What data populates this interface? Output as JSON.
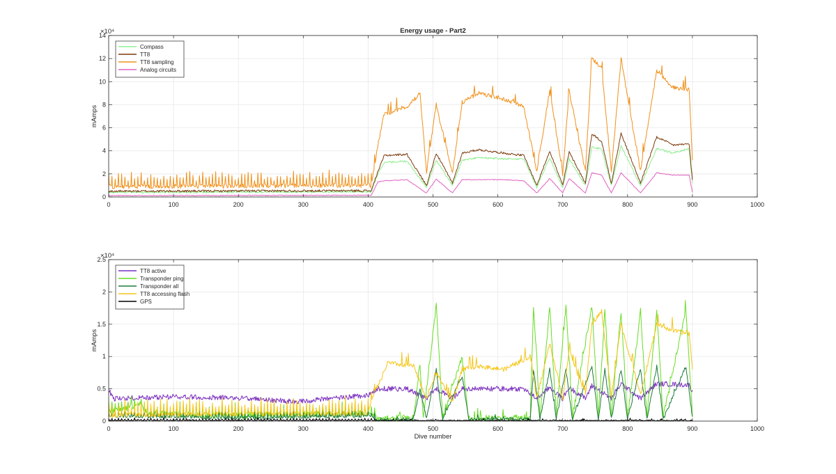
{
  "figure": {
    "background": "#ffffff"
  },
  "chart_data": [
    {
      "type": "line",
      "title": "Energy usage - Part2",
      "xlabel": "",
      "ylabel": "mAmps",
      "xlim": [
        0,
        1000
      ],
      "ylim": [
        0,
        140000
      ],
      "exponent_label": "×10⁴",
      "grid": true,
      "legend_position": "top-left",
      "xticks": [
        0,
        100,
        200,
        300,
        400,
        500,
        600,
        700,
        800,
        900,
        1000
      ],
      "ytick_values": [
        0,
        20000,
        40000,
        60000,
        80000,
        100000,
        120000,
        140000
      ],
      "ytick_labels": [
        "0",
        "2",
        "4",
        "6",
        "8",
        "10",
        "12",
        "14"
      ],
      "series": [
        {
          "name": "Compass",
          "color": "#90ee90",
          "baseline": 4000,
          "spike": 0,
          "noise": 800,
          "levels": [
            [
              0,
              4000
            ],
            [
              405,
              4500
            ],
            [
              415,
              20000
            ],
            [
              425,
              30000
            ],
            [
              460,
              31000
            ],
            [
              490,
              8500
            ],
            [
              505,
              32000
            ],
            [
              530,
              10000
            ],
            [
              545,
              32000
            ],
            [
              570,
              34000
            ],
            [
              610,
              33000
            ],
            [
              640,
              33000
            ],
            [
              660,
              8500
            ],
            [
              680,
              34000
            ],
            [
              700,
              8000
            ],
            [
              710,
              33000
            ],
            [
              735,
              10000
            ],
            [
              745,
              43000
            ],
            [
              760,
              42000
            ],
            [
              775,
              10000
            ],
            [
              790,
              44000
            ],
            [
              820,
              10000
            ],
            [
              845,
              42000
            ],
            [
              870,
              38000
            ],
            [
              895,
              42000
            ],
            [
              900,
              12000
            ]
          ]
        },
        {
          "name": "TT8",
          "color": "#7a3b0e",
          "baseline": 5000,
          "spike": 0,
          "noise": 900,
          "levels": [
            [
              0,
              5000
            ],
            [
              405,
              5500
            ],
            [
              415,
              22000
            ],
            [
              425,
              36000
            ],
            [
              460,
              37000
            ],
            [
              490,
              10000
            ],
            [
              505,
              38000
            ],
            [
              530,
              12000
            ],
            [
              545,
              38000
            ],
            [
              570,
              41000
            ],
            [
              610,
              38000
            ],
            [
              640,
              36000
            ],
            [
              660,
              10000
            ],
            [
              680,
              40000
            ],
            [
              700,
              10000
            ],
            [
              710,
              39000
            ],
            [
              735,
              12000
            ],
            [
              745,
              55000
            ],
            [
              760,
              48000
            ],
            [
              775,
              12000
            ],
            [
              790,
              55000
            ],
            [
              820,
              12000
            ],
            [
              845,
              52000
            ],
            [
              870,
              45000
            ],
            [
              895,
              46000
            ],
            [
              900,
              14000
            ]
          ]
        },
        {
          "name": "TT8 sampling",
          "color": "#f0901a",
          "baseline": 9000,
          "spike": 11000,
          "noise": 1800,
          "levels": [
            [
              0,
              9000
            ],
            [
              405,
              10000
            ],
            [
              415,
              45000
            ],
            [
              425,
              72000
            ],
            [
              460,
              78000
            ],
            [
              480,
              90000
            ],
            [
              490,
              22000
            ],
            [
              505,
              80000
            ],
            [
              530,
              20000
            ],
            [
              545,
              82000
            ],
            [
              570,
              90000
            ],
            [
              610,
              85000
            ],
            [
              640,
              78000
            ],
            [
              660,
              22000
            ],
            [
              680,
              93000
            ],
            [
              700,
              20000
            ],
            [
              710,
              92000
            ],
            [
              735,
              22000
            ],
            [
              745,
              120000
            ],
            [
              760,
              112000
            ],
            [
              775,
              22000
            ],
            [
              790,
              120000
            ],
            [
              820,
              22000
            ],
            [
              845,
              110000
            ],
            [
              870,
              95000
            ],
            [
              895,
              93000
            ],
            [
              900,
              32000
            ]
          ]
        },
        {
          "name": "Analog circuits",
          "color": "#e060c0",
          "baseline": 1200,
          "spike": 0,
          "noise": 300,
          "levels": [
            [
              0,
              1200
            ],
            [
              405,
              1500
            ],
            [
              415,
              13000
            ],
            [
              425,
              14000
            ],
            [
              460,
              15000
            ],
            [
              490,
              3500
            ],
            [
              505,
              15500
            ],
            [
              530,
              3500
            ],
            [
              545,
              15000
            ],
            [
              570,
              15000
            ],
            [
              610,
              15000
            ],
            [
              640,
              14000
            ],
            [
              660,
              3500
            ],
            [
              680,
              16000
            ],
            [
              700,
              3500
            ],
            [
              710,
              16000
            ],
            [
              735,
              3500
            ],
            [
              745,
              21000
            ],
            [
              760,
              19000
            ],
            [
              775,
              3500
            ],
            [
              790,
              21000
            ],
            [
              820,
              3500
            ],
            [
              845,
              21000
            ],
            [
              870,
              19000
            ],
            [
              895,
              19000
            ],
            [
              900,
              4000
            ]
          ]
        }
      ]
    },
    {
      "type": "line",
      "title": "",
      "xlabel": "Dive number",
      "ylabel": "mAmps",
      "xlim": [
        0,
        1000
      ],
      "ylim": [
        0,
        25000
      ],
      "exponent_label": "×10⁴",
      "grid": true,
      "legend_position": "top-left",
      "xticks": [
        0,
        100,
        200,
        300,
        400,
        500,
        600,
        700,
        800,
        900,
        1000
      ],
      "ytick_values": [
        0,
        5000,
        10000,
        15000,
        20000,
        25000
      ],
      "ytick_labels": [
        "0",
        "0.5",
        "1",
        "1.5",
        "2",
        "2.5"
      ],
      "series": [
        {
          "name": "TT8 active",
          "color": "#7b2fbf",
          "baseline": 3500,
          "spike": 0,
          "noise": 400,
          "levels": [
            [
              0,
              4800
            ],
            [
              8,
              3500
            ],
            [
              100,
              3800
            ],
            [
              200,
              3600
            ],
            [
              290,
              3000
            ],
            [
              400,
              4000
            ],
            [
              415,
              5000
            ],
            [
              460,
              5000
            ],
            [
              490,
              3500
            ],
            [
              505,
              5000
            ],
            [
              530,
              3500
            ],
            [
              545,
              5000
            ],
            [
              600,
              5000
            ],
            [
              640,
              5000
            ],
            [
              660,
              3500
            ],
            [
              680,
              5200
            ],
            [
              700,
              3500
            ],
            [
              710,
              5200
            ],
            [
              735,
              3500
            ],
            [
              745,
              5500
            ],
            [
              775,
              3500
            ],
            [
              790,
              5800
            ],
            [
              820,
              3500
            ],
            [
              845,
              5800
            ],
            [
              895,
              5600
            ],
            [
              900,
              4500
            ]
          ]
        },
        {
          "name": "Transponder ping",
          "color": "#66dd22",
          "baseline": 1200,
          "spike": 1500,
          "noise": 500,
          "levels": [
            [
              0,
              1500
            ],
            [
              50,
              2500
            ],
            [
              60,
              1200
            ],
            [
              200,
              800
            ],
            [
              400,
              1200
            ],
            [
              415,
              300
            ],
            [
              470,
              500
            ],
            [
              480,
              9000
            ],
            [
              485,
              500
            ],
            [
              505,
              18000
            ],
            [
              515,
              500
            ],
            [
              545,
              10000
            ],
            [
              555,
              500
            ],
            [
              650,
              500
            ],
            [
              655,
              18000
            ],
            [
              665,
              500
            ],
            [
              680,
              18000
            ],
            [
              690,
              500
            ],
            [
              705,
              18000
            ],
            [
              715,
              500
            ],
            [
              745,
              18000
            ],
            [
              755,
              500
            ],
            [
              765,
              17000
            ],
            [
              775,
              500
            ],
            [
              790,
              17000
            ],
            [
              800,
              500
            ],
            [
              820,
              17000
            ],
            [
              830,
              500
            ],
            [
              845,
              17000
            ],
            [
              855,
              500
            ],
            [
              890,
              17500
            ],
            [
              900,
              1000
            ]
          ]
        },
        {
          "name": "Transponder all",
          "color": "#1e7a3a",
          "baseline": 800,
          "spike": 700,
          "noise": 250,
          "levels": [
            [
              0,
              800
            ],
            [
              200,
              500
            ],
            [
              400,
              800
            ],
            [
              415,
              200
            ],
            [
              470,
              300
            ],
            [
              480,
              5000
            ],
            [
              490,
              300
            ],
            [
              505,
              8000
            ],
            [
              515,
              300
            ],
            [
              545,
              7000
            ],
            [
              555,
              300
            ],
            [
              650,
              300
            ],
            [
              655,
              8000
            ],
            [
              665,
              300
            ],
            [
              680,
              8000
            ],
            [
              690,
              300
            ],
            [
              705,
              8000
            ],
            [
              715,
              300
            ],
            [
              745,
              8500
            ],
            [
              755,
              300
            ],
            [
              765,
              8000
            ],
            [
              775,
              300
            ],
            [
              790,
              8000
            ],
            [
              800,
              300
            ],
            [
              820,
              8000
            ],
            [
              830,
              300
            ],
            [
              845,
              8500
            ],
            [
              855,
              300
            ],
            [
              890,
              8500
            ],
            [
              900,
              500
            ]
          ]
        },
        {
          "name": "TT8 accessing flash",
          "color": "#f5c518",
          "baseline": 900,
          "spike": 2200,
          "noise": 350,
          "levels": [
            [
              0,
              900
            ],
            [
              400,
              1200
            ],
            [
              410,
              4500
            ],
            [
              420,
              6500
            ],
            [
              430,
              9000
            ],
            [
              470,
              8500
            ],
            [
              490,
              3500
            ],
            [
              505,
              7500
            ],
            [
              530,
              3000
            ],
            [
              545,
              8000
            ],
            [
              570,
              8500
            ],
            [
              610,
              8000
            ],
            [
              650,
              10000
            ],
            [
              660,
              3500
            ],
            [
              680,
              12000
            ],
            [
              700,
              3500
            ],
            [
              710,
              11000
            ],
            [
              735,
              4000
            ],
            [
              745,
              15000
            ],
            [
              760,
              17000
            ],
            [
              775,
              4000
            ],
            [
              790,
              15000
            ],
            [
              820,
              4000
            ],
            [
              845,
              15000
            ],
            [
              870,
              14000
            ],
            [
              895,
              13500
            ],
            [
              900,
              8000
            ]
          ]
        },
        {
          "name": "GPS",
          "color": "#000000",
          "baseline": 100,
          "spike": 350,
          "noise": 80,
          "levels": [
            [
              0,
              100
            ],
            [
              900,
              100
            ]
          ]
        }
      ]
    }
  ]
}
